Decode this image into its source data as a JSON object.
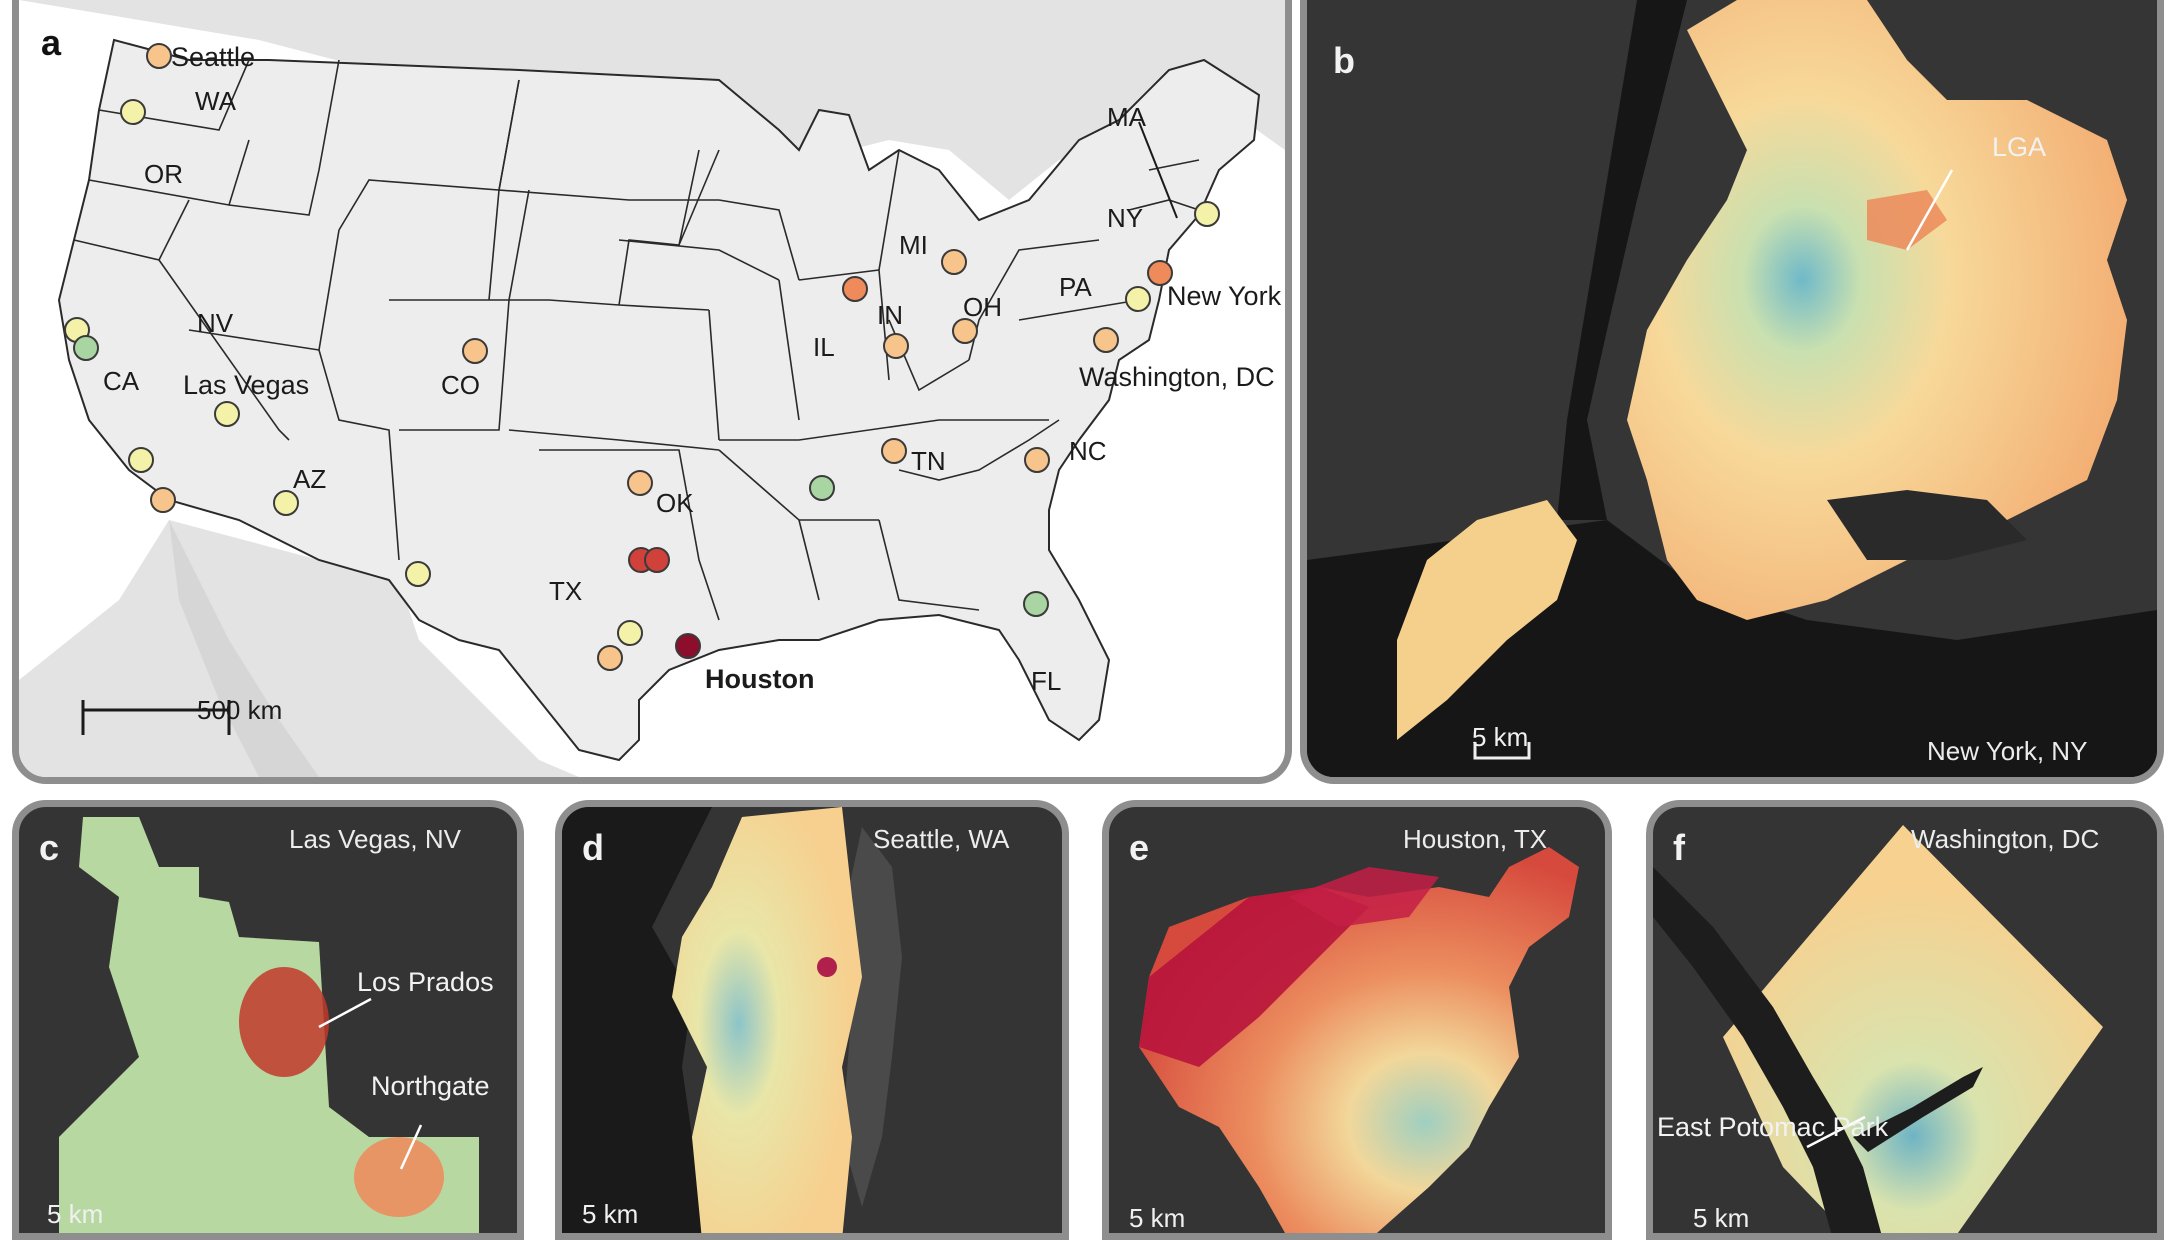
{
  "panel_a": {
    "letter": "a",
    "scale_label": "500 km",
    "state_labels": [
      "WA",
      "OR",
      "CA",
      "NV",
      "AZ",
      "CO",
      "TX",
      "OK",
      "IL",
      "IN",
      "OH",
      "MI",
      "PA",
      "NY",
      "MA",
      "TN",
      "NC",
      "FL"
    ],
    "city_labels": [
      "Seattle",
      "Las Vegas",
      "New York",
      "Washington, DC",
      "Houston"
    ],
    "marker_colors": {
      "green": "#a8d5a2",
      "light_yellow": "#f4f2a8",
      "peach": "#f7c58c",
      "orange": "#ef8a5b",
      "red": "#d0413b",
      "dark_red": "#8c0d2c"
    }
  },
  "panel_b": {
    "letter": "b",
    "title": "New York, NY",
    "annotation": "LGA",
    "scale_label": "5 km"
  },
  "panel_c": {
    "letter": "c",
    "title": "Las Vegas, NV",
    "annotations": [
      "Los Prados",
      "Northgate"
    ],
    "scale_label": "5 km"
  },
  "panel_d": {
    "letter": "d",
    "title": "Seattle, WA",
    "scale_label": "5 km"
  },
  "panel_e": {
    "letter": "e",
    "title": "Houston, TX",
    "scale_label": "5 km"
  },
  "panel_f": {
    "letter": "f",
    "title": "Washington, DC",
    "annotation": "East Potomac Park",
    "scale_label": "5 km"
  }
}
